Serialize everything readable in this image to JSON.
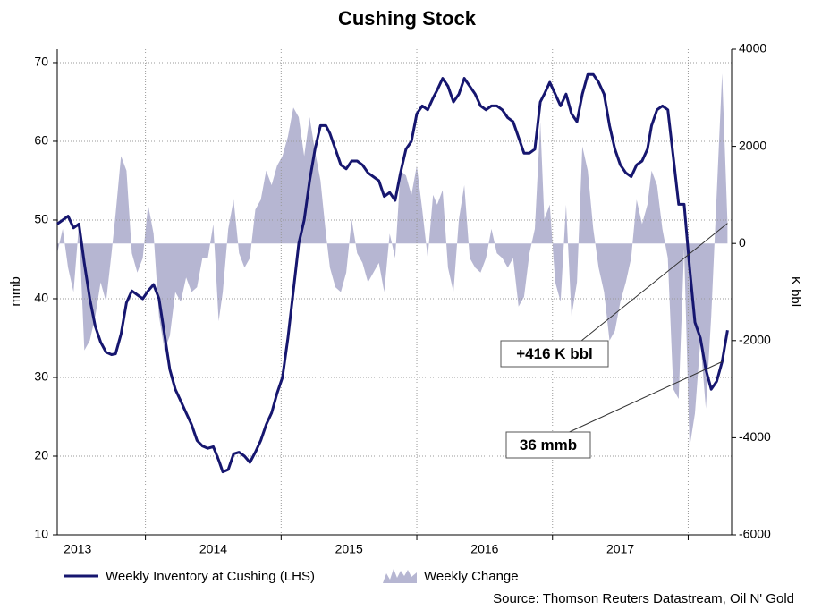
{
  "chart_data": {
    "type": "line",
    "title": "Cushing Stock",
    "ylabel": "mmb",
    "y2label": "K bbl",
    "source": "Source: Thomson Reuters Datastream, Oil N' Gold",
    "annotations": [
      "+416 K bbl",
      "36 mmb"
    ],
    "x": [
      2013.35,
      2013.39,
      2013.43,
      2013.47,
      2013.51,
      2013.55,
      2013.59,
      2013.63,
      2013.67,
      2013.71,
      2013.75,
      2013.78,
      2013.82,
      2013.86,
      2013.9,
      2013.94,
      2013.98,
      2014.02,
      2014.06,
      2014.1,
      2014.14,
      2014.18,
      2014.22,
      2014.26,
      2014.3,
      2014.34,
      2014.38,
      2014.42,
      2014.46,
      2014.5,
      2014.54,
      2014.57,
      2014.61,
      2014.65,
      2014.69,
      2014.73,
      2014.77,
      2014.81,
      2014.85,
      2014.89,
      2014.93,
      2014.97,
      2015.01,
      2015.05,
      2015.09,
      2015.13,
      2015.17,
      2015.21,
      2015.25,
      2015.29,
      2015.33,
      2015.36,
      2015.4,
      2015.44,
      2015.48,
      2015.52,
      2015.56,
      2015.6,
      2015.64,
      2015.68,
      2015.72,
      2015.76,
      2015.8,
      2015.84,
      2015.88,
      2015.92,
      2015.96,
      2016.0,
      2016.04,
      2016.08,
      2016.12,
      2016.15,
      2016.19,
      2016.23,
      2016.27,
      2016.31,
      2016.35,
      2016.39,
      2016.43,
      2016.47,
      2016.51,
      2016.55,
      2016.59,
      2016.63,
      2016.67,
      2016.71,
      2016.75,
      2016.79,
      2016.83,
      2016.87,
      2016.91,
      2016.94,
      2016.98,
      2017.02,
      2017.06,
      2017.1,
      2017.14,
      2017.18,
      2017.22,
      2017.26,
      2017.3,
      2017.34,
      2017.38,
      2017.42,
      2017.46,
      2017.5,
      2017.54,
      2017.58,
      2017.62,
      2017.66,
      2017.7,
      2017.73,
      2017.77,
      2017.81,
      2017.85,
      2017.89,
      2017.93,
      2017.97,
      2018.01,
      2018.05,
      2018.09,
      2018.13,
      2018.17,
      2018.21,
      2018.25,
      2018.29
    ],
    "series": [
      {
        "name": "Weekly Inventory at Cushing (LHS)",
        "color": "#16166f",
        "axis": "y",
        "values": [
          49.5,
          50,
          50.5,
          49,
          49.5,
          44.5,
          40,
          36.5,
          34.5,
          33.2,
          32.9,
          33,
          35.5,
          39.5,
          41,
          40.5,
          40,
          41,
          41.8,
          40,
          35.5,
          31,
          28.5,
          27,
          25.5,
          24,
          22,
          21.3,
          21,
          21.2,
          19.5,
          18,
          18.3,
          20.3,
          20.5,
          20,
          19.2,
          20.5,
          22,
          24,
          25.5,
          28,
          30,
          35,
          41,
          47,
          50,
          55,
          59,
          62,
          62,
          61,
          59,
          57,
          56.5,
          57.5,
          57.5,
          57,
          56,
          55.5,
          55,
          53,
          53.5,
          52.5,
          56,
          59,
          60,
          63.5,
          64.5,
          64,
          65.5,
          66.5,
          68,
          67,
          65,
          66,
          68,
          67,
          66,
          64.5,
          64,
          64.5,
          64.5,
          64,
          63,
          62.5,
          60.5,
          58.5,
          58.5,
          59,
          65,
          66,
          67.5,
          66,
          64.5,
          66,
          63.5,
          62.5,
          66,
          68.5,
          68.5,
          67.5,
          66,
          62,
          59,
          57,
          56,
          55.5,
          57,
          57.5,
          59,
          62,
          64,
          64.5,
          64,
          58,
          52,
          52,
          44,
          37,
          35,
          31,
          28.5,
          29.5,
          32,
          36
        ]
      },
      {
        "name": "Weekly Change",
        "color": "#b6b6d2",
        "axis": "y2",
        "values": [
          -200,
          300,
          -500,
          -1000,
          400,
          -2200,
          -2000,
          -1500,
          -800,
          -1200,
          -200,
          600,
          1800,
          1500,
          -200,
          -600,
          -300,
          800,
          200,
          -1500,
          -2200,
          -1900,
          -1000,
          -1200,
          -700,
          -1000,
          -900,
          -300,
          -300,
          400,
          -1600,
          -1000,
          300,
          900,
          -200,
          -500,
          -300,
          700,
          900,
          1500,
          1200,
          1600,
          1800,
          2200,
          2800,
          2600,
          1800,
          2600,
          1900,
          1300,
          200,
          -500,
          -900,
          -1000,
          -600,
          500,
          -200,
          -400,
          -800,
          -600,
          -400,
          -1000,
          200,
          -300,
          1500,
          1400,
          1000,
          1600,
          700,
          -300,
          1000,
          800,
          1100,
          -500,
          -1000,
          500,
          1200,
          -300,
          -500,
          -600,
          -300,
          300,
          -200,
          -300,
          -500,
          -300,
          -1300,
          -1100,
          -200,
          300,
          2500,
          500,
          800,
          -800,
          -1200,
          800,
          -1500,
          -800,
          2000,
          1500,
          300,
          -500,
          -1000,
          -2000,
          -1800,
          -1200,
          -800,
          -300,
          900,
          400,
          800,
          1500,
          1200,
          300,
          -300,
          -3000,
          -3200,
          -100,
          -4200,
          -3500,
          -2000,
          -3400,
          -1500,
          1000,
          3500,
          416
        ]
      }
    ],
    "xlim": [
      2013.35,
      2018.32
    ],
    "xticks": [
      2014,
      2015,
      2016,
      2017,
      2018
    ],
    "x_labels": [
      {
        "value": 2013.5,
        "label": "2013"
      },
      {
        "value": 2014.5,
        "label": "2014"
      },
      {
        "value": 2015.5,
        "label": "2015"
      },
      {
        "value": 2016.5,
        "label": "2016"
      },
      {
        "value": 2017.5,
        "label": "2017"
      }
    ],
    "ylim": [
      10,
      71.7
    ],
    "yticks": [
      10,
      20,
      30,
      40,
      50,
      60,
      70
    ],
    "y2lim": [
      -6000,
      4000
    ],
    "y2ticks": [
      -6000,
      -4000,
      -2000,
      0,
      2000,
      4000
    ],
    "grid": true
  }
}
